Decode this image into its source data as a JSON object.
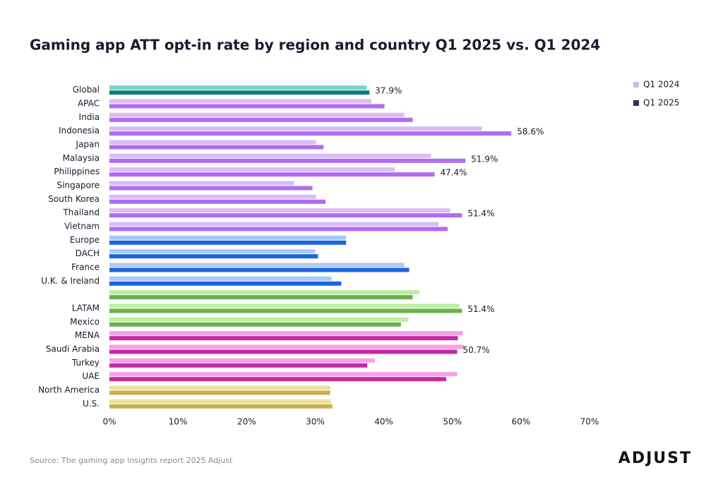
{
  "chart_data": {
    "type": "hbar",
    "title": "Gaming app ATT opt-in rate by region and country Q1 2025 vs. Q1 2024",
    "categories": [
      "Global",
      "APAC",
      "India",
      "Indonesia",
      "Japan",
      "Malaysia",
      "Philippines",
      "Singapore",
      "South Korea",
      "Thailand",
      "Vietnam",
      "Europe",
      "DACH",
      "France",
      "U.K. & Ireland",
      null,
      "LATAM",
      "Mexico",
      "MENA",
      "Saudi Arabia",
      "Turkey",
      "UAE",
      "North America",
      "U.S."
    ],
    "series": [
      {
        "name": "Q1 2024",
        "color": "#b8c4e8",
        "colors": [
          "#6fd6c8",
          "#dcbcf5",
          "#dcbcf5",
          "#dcbcf5",
          "#dcbcf5",
          "#dcbcf5",
          "#dcbcf5",
          "#dcbcf5",
          "#dcbcf5",
          "#dcbcf5",
          "#dcbcf5",
          "#a9c8f5",
          "#a9c8f5",
          "#a9c8f5",
          "#a9c8f5",
          "#b9f0a0",
          "#b9f0a0",
          "#b9f0a0",
          "#f7a0e8",
          "#f7a0e8",
          "#f7a0e8",
          "#f7a0e8",
          "#ede0a0",
          "#ede0a0"
        ],
        "values": [
          37.5,
          38.2,
          43.0,
          54.3,
          30.1,
          46.9,
          41.6,
          26.9,
          30.1,
          49.7,
          48.0,
          34.5,
          30.0,
          43.0,
          32.4,
          45.2,
          51.0,
          43.6,
          51.5,
          51.7,
          38.7,
          50.7,
          32.2,
          32.3
        ]
      },
      {
        "name": "Q1 2025",
        "color": "#2e3060",
        "colors": [
          "#127a76",
          "#b06cf0",
          "#b06cf0",
          "#b06cf0",
          "#b06cf0",
          "#b06cf0",
          "#b06cf0",
          "#b06cf0",
          "#b06cf0",
          "#b06cf0",
          "#b06cf0",
          "#1a66e0",
          "#1a66e0",
          "#1a66e0",
          "#1a66e0",
          "#6ab04a",
          "#6ab04a",
          "#6ab04a",
          "#c22aa4",
          "#c22aa4",
          "#c22aa4",
          "#c22aa4",
          "#c9b050",
          "#c9b050"
        ],
        "values": [
          37.9,
          40.1,
          44.2,
          58.6,
          31.2,
          51.9,
          47.4,
          29.6,
          31.5,
          51.4,
          49.3,
          34.5,
          30.4,
          43.7,
          33.8,
          44.2,
          51.4,
          42.5,
          50.8,
          50.7,
          37.6,
          49.1,
          32.2,
          32.5
        ],
        "value_labels": [
          "37.9%",
          null,
          null,
          "58.6%",
          null,
          "51.9%",
          "47.4%",
          null,
          null,
          "51.4%",
          null,
          null,
          null,
          null,
          null,
          null,
          "51.4%",
          null,
          null,
          "50.7%",
          null,
          null,
          null,
          null
        ]
      }
    ],
    "xlim": [
      0,
      70
    ],
    "xticks": [
      {
        "value": 0,
        "label": "0%"
      },
      {
        "value": 10,
        "label": "10%"
      },
      {
        "value": 20,
        "label": "20%"
      },
      {
        "value": 30,
        "label": "30%"
      },
      {
        "value": 40,
        "label": "40%"
      },
      {
        "value": 50,
        "label": "50%"
      },
      {
        "value": 60,
        "label": "60%"
      },
      {
        "value": 70,
        "label": "70%"
      }
    ],
    "legend": "top-right",
    "source": "Source: The gaming app insights report 2025 Adjust",
    "logo": "ADJUST"
  }
}
